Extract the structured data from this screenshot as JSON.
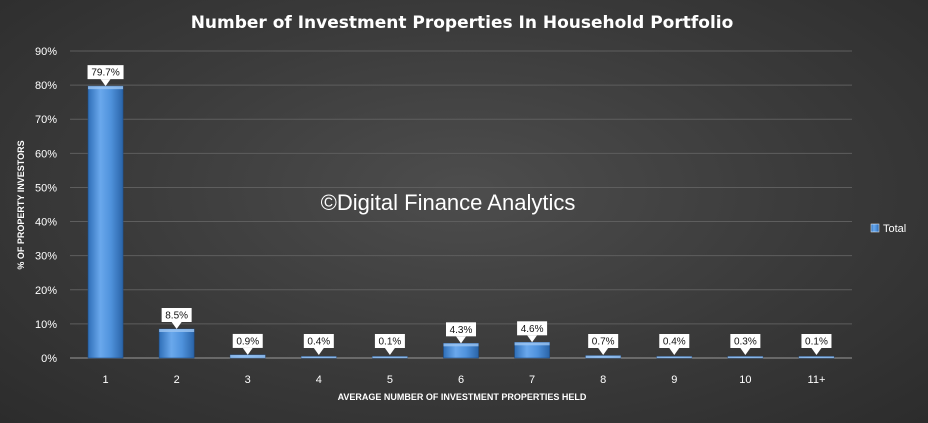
{
  "chart_data": {
    "type": "bar",
    "title": "Number of Investment Properties In Household Portfolio",
    "xlabel": "AVERAGE NUMBER OF INVESTMENT PROPERTIES HELD",
    "ylabel": "% OF PROPERTY INVESTORS",
    "categories": [
      "1",
      "2",
      "3",
      "4",
      "5",
      "6",
      "7",
      "8",
      "9",
      "10",
      "11+"
    ],
    "series": [
      {
        "name": "Total",
        "values": [
          79.7,
          8.5,
          0.9,
          0.4,
          0.1,
          4.3,
          4.6,
          0.7,
          0.4,
          0.3,
          0.1
        ],
        "labels": [
          "79.7%",
          "8.5%",
          "0.9%",
          "0.4%",
          "0.1%",
          "4.3%",
          "4.6%",
          "0.7%",
          "0.4%",
          "0.3%",
          "0.1%"
        ]
      }
    ],
    "ylim": [
      0,
      90
    ],
    "yticks": [
      "0%",
      "10%",
      "20%",
      "30%",
      "40%",
      "50%",
      "60%",
      "70%",
      "80%",
      "90%"
    ],
    "grid": true,
    "legend": "right",
    "bar_color": "#4a8fd8",
    "annotation": "©Digital Finance Analytics"
  }
}
